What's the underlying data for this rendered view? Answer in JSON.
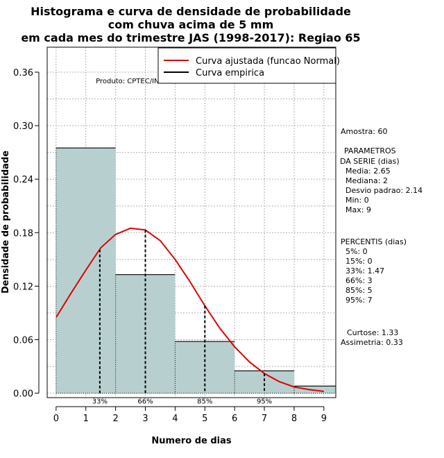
{
  "chart_data": {
    "type": "bar",
    "title_lines": [
      "Histograma e curva de densidade de probabilidade",
      "com chuva acima de 5 mm",
      "em cada mes do trimestre JAS (1998-2017): Regiao 65"
    ],
    "xlabel": "Numero de dias",
    "ylabel": "Densidade de probabilidade",
    "xlim": [
      -0.3,
      9.4
    ],
    "ylim": [
      -0.005,
      0.388
    ],
    "x_ticks": [
      0,
      1,
      2,
      3,
      4,
      5,
      6,
      7,
      8,
      9
    ],
    "y_ticks": [
      0.0,
      0.06,
      0.12,
      0.18,
      0.24,
      0.3,
      0.36
    ],
    "y_tick_labels": [
      "0.00",
      "0.06",
      "0.12",
      "0.18",
      "0.24",
      "0.30",
      "0.36"
    ],
    "bins": [
      {
        "x0": 0,
        "x1": 2,
        "density": 0.275
      },
      {
        "x0": 2,
        "x1": 4,
        "density": 0.133
      },
      {
        "x0": 4,
        "x1": 6,
        "density": 0.058
      },
      {
        "x0": 6,
        "x1": 8,
        "density": 0.025
      },
      {
        "x0": 8,
        "x1": 10,
        "density": 0.008
      }
    ],
    "curve": {
      "name": "Curva ajustada (funcao Normal)",
      "color": "#e00000",
      "points": [
        [
          0,
          0.085
        ],
        [
          0.5,
          0.112
        ],
        [
          1,
          0.138
        ],
        [
          1.5,
          0.163
        ],
        [
          2,
          0.178
        ],
        [
          2.5,
          0.185
        ],
        [
          3,
          0.183
        ],
        [
          3.5,
          0.171
        ],
        [
          4,
          0.15
        ],
        [
          4.5,
          0.125
        ],
        [
          5,
          0.098
        ],
        [
          5.5,
          0.073
        ],
        [
          6,
          0.052
        ],
        [
          6.5,
          0.035
        ],
        [
          7,
          0.022
        ],
        [
          7.5,
          0.013
        ],
        [
          8,
          0.007
        ],
        [
          8.5,
          0.004
        ],
        [
          9,
          0.002
        ]
      ]
    },
    "percentile_lines": [
      {
        "label": "33%",
        "x": 1.47,
        "y": 0.161,
        "label_x": 1.47
      },
      {
        "label": "66%",
        "x": 3,
        "y": 0.183,
        "label_x": 3
      },
      {
        "label": "85%",
        "x": 5,
        "y": 0.098,
        "label_x": 5
      },
      {
        "label": "95%",
        "x": 7,
        "y": 0.022,
        "label_x": 7
      }
    ],
    "legend": {
      "position": "top-right",
      "entries": [
        {
          "label": "Curva ajustada (funcao Normal)",
          "color": "#e00000"
        },
        {
          "label": "Curva empirica",
          "color": "#000000"
        }
      ]
    },
    "source_note": "Produto: CPTEC/INPE",
    "colors": {
      "bar_fill": "#b8cfcf",
      "grid": "#b0b0b0"
    }
  },
  "side_panel": {
    "sample": "Amostra: 60",
    "params_title_1": "PARAMETROS",
    "params_title_2": "DA SERIE (dias)",
    "media": "Media: 2.65",
    "mediana": "Mediana: 2",
    "desvio": "Desvio padrao: 2.14",
    "min": "Min: 0",
    "max": "Max: 9",
    "pct_title": "PERCENTIS (dias)",
    "p5": "5%: 0",
    "p15": "15%: 0",
    "p33": "33%: 1.47",
    "p66": "66%: 3",
    "p85": "85%: 5",
    "p95": "95%: 7",
    "curtose": "Curtose: 1.33",
    "assimetria": "Assimetria: 0.33"
  }
}
